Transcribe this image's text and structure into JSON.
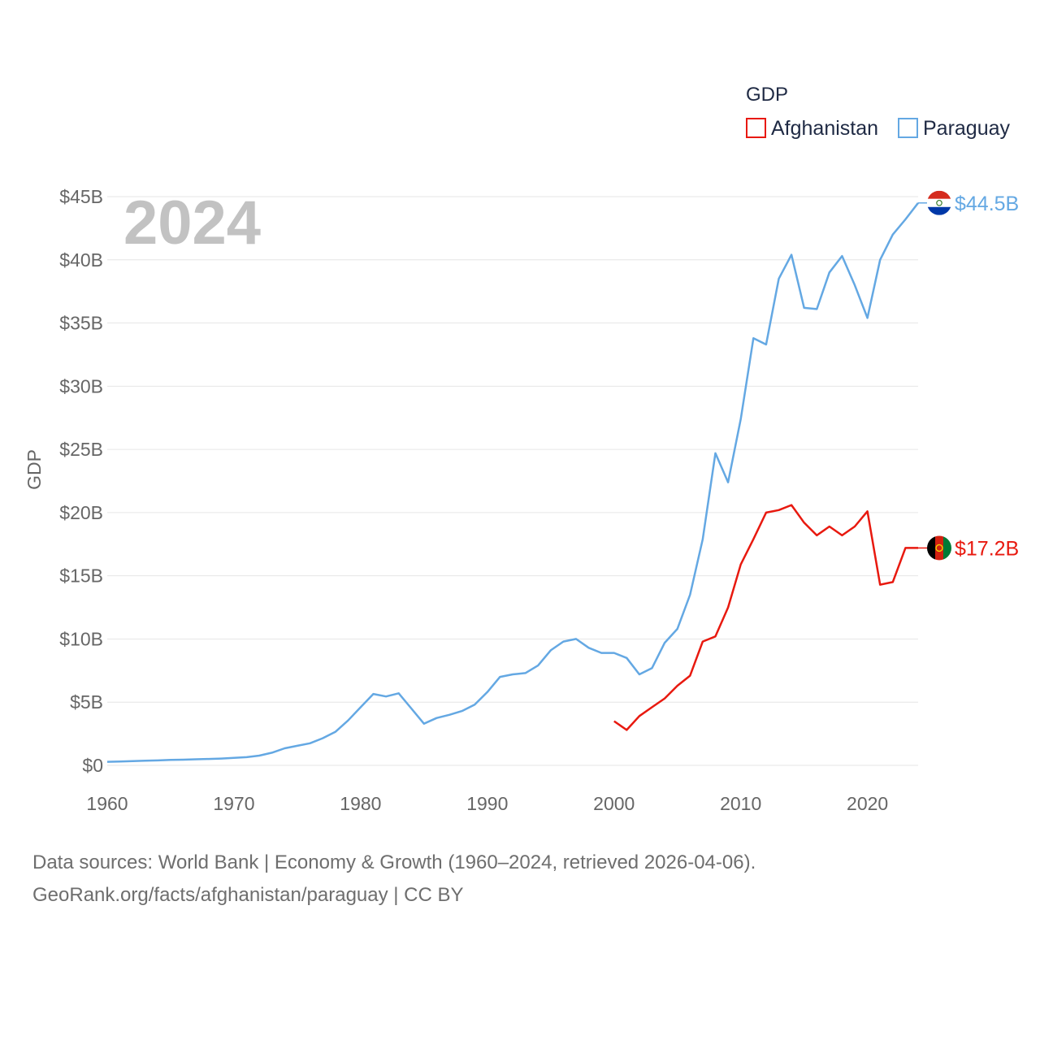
{
  "chart_data": {
    "type": "line",
    "ylabel": "GDP",
    "xlabel": "",
    "year_label": "2024",
    "xlim": [
      1960,
      2024
    ],
    "ylim": [
      0,
      45
    ],
    "x_ticks": [
      1960,
      1970,
      1980,
      1990,
      2000,
      2010,
      2020
    ],
    "x_tick_labels": [
      "1960",
      "1970",
      "1980",
      "1990",
      "2000",
      "2010",
      "2020"
    ],
    "y_ticks": [
      0,
      5,
      10,
      15,
      20,
      25,
      30,
      35,
      40,
      45
    ],
    "y_tick_labels": [
      "$0",
      "$5B",
      "$10B",
      "$15B",
      "$20B",
      "$25B",
      "$30B",
      "$35B",
      "$40B",
      "$45B"
    ],
    "legend": {
      "title": "GDP",
      "position": "top-right",
      "entries": [
        "Afghanistan",
        "Paraguay"
      ]
    },
    "series": [
      {
        "name": "Afghanistan",
        "color": "#e8190f",
        "end_label": "$17.2B",
        "flag": "afghanistan-flag",
        "x": [
          2000,
          2001,
          2002,
          2003,
          2004,
          2005,
          2006,
          2007,
          2008,
          2009,
          2010,
          2011,
          2012,
          2013,
          2014,
          2015,
          2016,
          2017,
          2018,
          2019,
          2020,
          2021,
          2022,
          2023,
          2024
        ],
        "y": [
          3.5,
          2.8,
          3.9,
          4.6,
          5.3,
          6.3,
          7.1,
          9.8,
          10.2,
          12.5,
          15.9,
          17.9,
          20.0,
          20.2,
          20.6,
          19.2,
          18.2,
          18.9,
          18.2,
          18.9,
          20.1,
          14.3,
          14.5,
          17.2,
          17.2
        ]
      },
      {
        "name": "Paraguay",
        "color": "#64a8e3",
        "end_label": "$44.5B",
        "flag": "paraguay-flag",
        "x": [
          1960,
          1961,
          1962,
          1963,
          1964,
          1965,
          1966,
          1967,
          1968,
          1969,
          1970,
          1971,
          1972,
          1973,
          1974,
          1975,
          1976,
          1977,
          1978,
          1979,
          1980,
          1981,
          1982,
          1983,
          1984,
          1985,
          1986,
          1987,
          1988,
          1989,
          1990,
          1991,
          1992,
          1993,
          1994,
          1995,
          1996,
          1997,
          1998,
          1999,
          2000,
          2001,
          2002,
          2003,
          2004,
          2005,
          2006,
          2007,
          2008,
          2009,
          2010,
          2011,
          2012,
          2013,
          2014,
          2015,
          2016,
          2017,
          2018,
          2019,
          2020,
          2021,
          2022,
          2023,
          2024
        ],
        "y": [
          0.28,
          0.31,
          0.34,
          0.37,
          0.39,
          0.43,
          0.45,
          0.48,
          0.51,
          0.54,
          0.59,
          0.65,
          0.77,
          1.0,
          1.35,
          1.55,
          1.75,
          2.15,
          2.65,
          3.55,
          4.6,
          5.65,
          5.45,
          5.7,
          4.5,
          3.3,
          3.75,
          4.0,
          4.3,
          4.8,
          5.8,
          7.0,
          7.2,
          7.3,
          7.9,
          9.1,
          9.8,
          10.0,
          9.3,
          8.9,
          8.9,
          8.5,
          7.2,
          7.7,
          9.7,
          10.8,
          13.5,
          17.9,
          24.7,
          22.4,
          27.4,
          33.8,
          33.3,
          38.5,
          40.4,
          36.2,
          36.1,
          39.0,
          40.3,
          38.0,
          35.4,
          40.0,
          42.0,
          43.2,
          44.5
        ]
      }
    ]
  },
  "footer": {
    "line1": "Data sources: World Bank | Economy & Growth (1960–2024, retrieved 2026-04-06).",
    "line2": "GeoRank.org/facts/afghanistan/paraguay | CC BY"
  }
}
